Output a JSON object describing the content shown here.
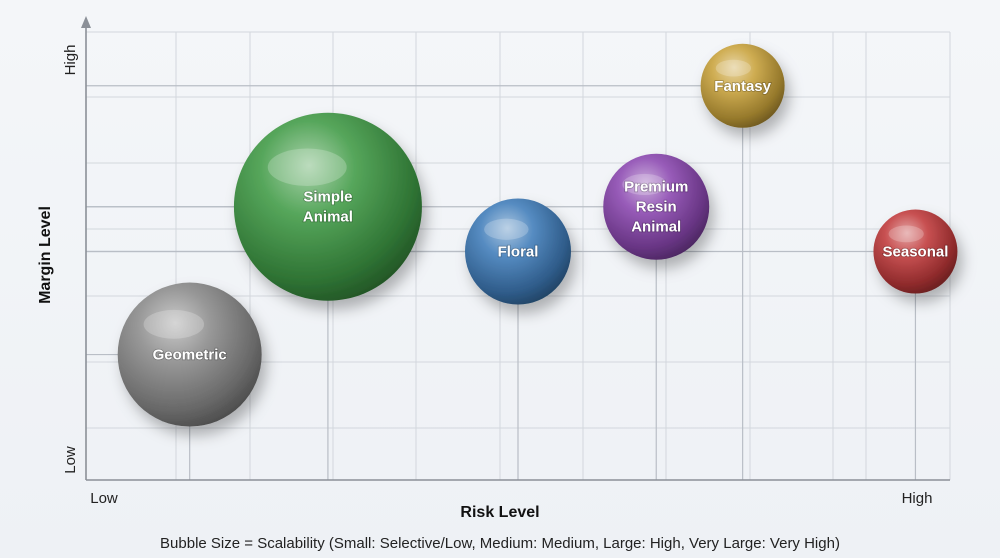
{
  "chart_data": {
    "type": "bubble",
    "xlabel": "Risk Level",
    "ylabel": "Margin Level",
    "x_ticks": {
      "low": "Low",
      "high": "High"
    },
    "y_ticks": {
      "low": "Low",
      "high": "High"
    },
    "xlim": [
      0,
      10
    ],
    "ylim": [
      0,
      10
    ],
    "size_scale": [
      "Small",
      "Medium",
      "Large",
      "Very Large"
    ],
    "caption": "Bubble Size = Scalability (Small: Selective/Low, Medium: Medium, Large: High, Very Large: Very High)",
    "grid": true,
    "points": [
      {
        "label": [
          "Geometric"
        ],
        "x": 1.2,
        "y": 2.8,
        "size": "Large",
        "color": "#8a8a8a"
      },
      {
        "label": [
          "Simple",
          "Animal"
        ],
        "x": 2.8,
        "y": 6.1,
        "size": "Very Large",
        "color": "#3f9a45"
      },
      {
        "label": [
          "Floral"
        ],
        "x": 5.0,
        "y": 5.1,
        "size": "Medium",
        "color": "#3e7bb8"
      },
      {
        "label": [
          "Premium",
          "Resin",
          "Animal"
        ],
        "x": 6.6,
        "y": 6.1,
        "size": "Medium",
        "color": "#8a46b0"
      },
      {
        "label": [
          "Fantasy"
        ],
        "x": 7.6,
        "y": 8.8,
        "size": "Small",
        "color": "#c9a23a"
      },
      {
        "label": [
          "Seasonal"
        ],
        "x": 9.6,
        "y": 5.1,
        "size": "Small",
        "color": "#c0393a"
      }
    ]
  }
}
